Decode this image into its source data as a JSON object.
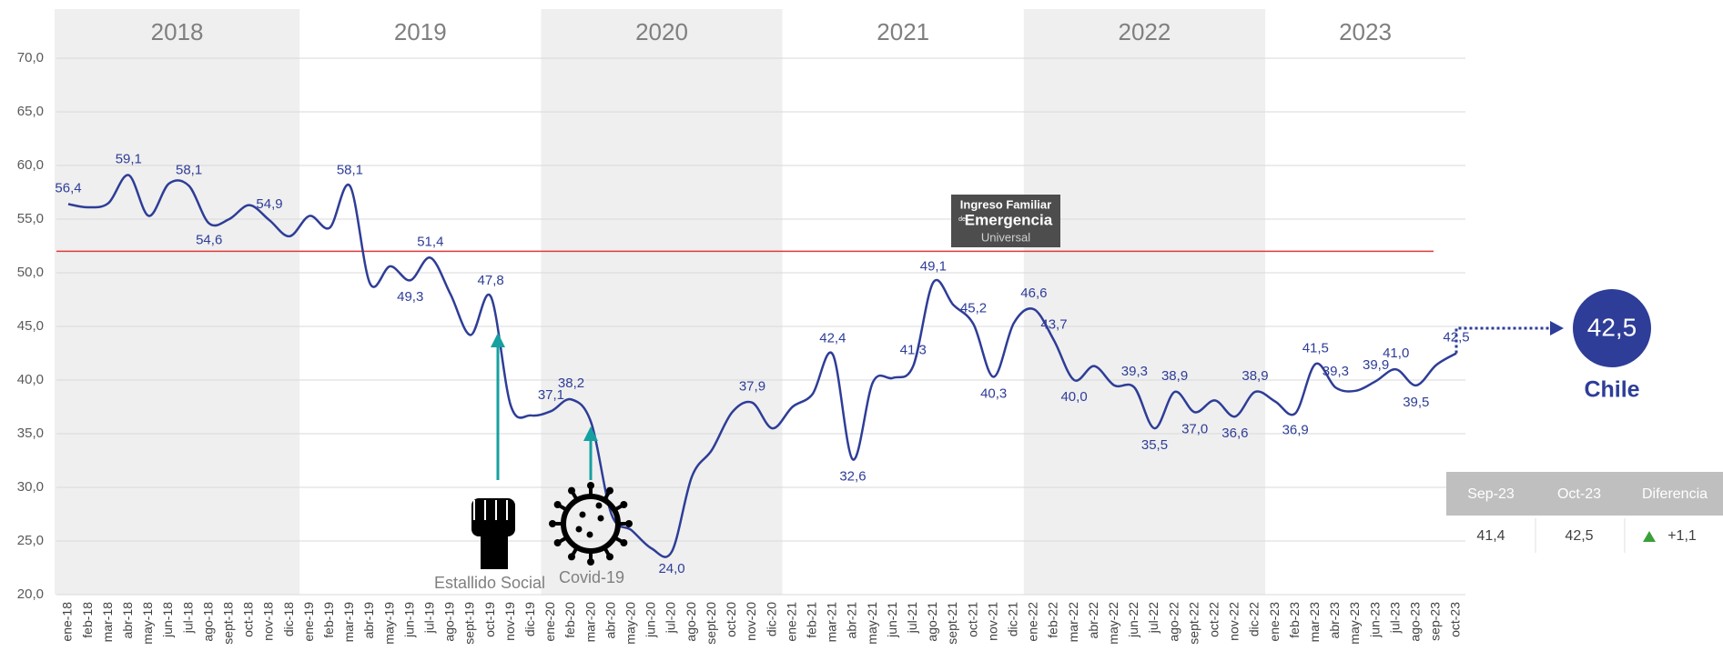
{
  "chart_data": {
    "type": "line",
    "categories": [
      "ene-18",
      "feb-18",
      "mar-18",
      "abr-18",
      "may-18",
      "jun-18",
      "jul-18",
      "ago-18",
      "sept-18",
      "oct-18",
      "nov-18",
      "dic-18",
      "ene-19",
      "feb-19",
      "mar-19",
      "abr-19",
      "may-19",
      "jun-19",
      "jul-19",
      "ago-19",
      "sept-19",
      "oct-19",
      "nov-19",
      "dic-19",
      "ene-20",
      "feb-20",
      "mar-20",
      "abr-20",
      "may-20",
      "jun-20",
      "jul-20",
      "ago-20",
      "sept-20",
      "oct-20",
      "nov-20",
      "dic-20",
      "ene-21",
      "feb-21",
      "mar-21",
      "abr-21",
      "may-21",
      "jun-21",
      "jul-21",
      "ago-21",
      "sept-21",
      "oct-21",
      "nov-21",
      "dic-21",
      "ene-22",
      "feb-22",
      "mar-22",
      "abr-22",
      "may-22",
      "jun-22",
      "jul-22",
      "ago-22",
      "sept-22",
      "oct-22",
      "nov-22",
      "dic-22",
      "ene-23",
      "feb-23",
      "mar-23",
      "abr-23",
      "may-23",
      "jun-23",
      "jul-23",
      "ago-23",
      "sep-23",
      "oct-23"
    ],
    "series": [
      {
        "name": "Chile",
        "color": "#2e3d97",
        "values": [
          56.4,
          56.1,
          56.5,
          59.1,
          55.3,
          58.3,
          58.1,
          54.6,
          55.0,
          56.3,
          54.9,
          53.4,
          55.3,
          54.2,
          58.1,
          49.0,
          50.6,
          49.3,
          51.4,
          48.0,
          44.2,
          47.8,
          37.6,
          36.7,
          37.1,
          38.2,
          36.0,
          27.5,
          26.0,
          24.3,
          24.0,
          31.0,
          33.5,
          37.0,
          37.9,
          35.5,
          37.5,
          38.7,
          42.4,
          32.6,
          39.8,
          40.2,
          41.3,
          49.1,
          47.0,
          45.2,
          40.3,
          45.3,
          46.6,
          43.7,
          40.0,
          41.3,
          39.5,
          39.3,
          35.5,
          38.9,
          37.0,
          38.1,
          36.6,
          38.9,
          38.0,
          36.9,
          41.5,
          39.3,
          39.0,
          39.9,
          41.0,
          39.5,
          41.4,
          42.5
        ],
        "value_labels": [
          "56,4",
          null,
          null,
          "59,1",
          null,
          null,
          "58,1",
          "54,6",
          null,
          null,
          "54,9",
          null,
          null,
          null,
          "58,1",
          null,
          null,
          "49,3",
          "51,4",
          null,
          null,
          "47,8",
          null,
          null,
          "37,1",
          "38,2",
          null,
          null,
          null,
          null,
          "24,0",
          null,
          null,
          null,
          "37,9",
          null,
          null,
          null,
          "42,4",
          "32,6",
          null,
          null,
          "41,3",
          "49,1",
          null,
          "45,2",
          "40,3",
          null,
          "46,6",
          "43,7",
          "40,0",
          null,
          null,
          "39,3",
          "35,5",
          "38,9",
          "37,0",
          null,
          "36,6",
          "38,9",
          null,
          "36,9",
          "41,5",
          "39,3",
          null,
          "39,9",
          "41,0",
          "39,5",
          null,
          "42,5"
        ]
      }
    ],
    "years": [
      "2018",
      "2019",
      "2020",
      "2021",
      "2022",
      "2023"
    ],
    "ylim": [
      20,
      70
    ],
    "yticks": [
      {
        "value": 20,
        "label": "20,0"
      },
      {
        "value": 25,
        "label": "25,0"
      },
      {
        "value": 30,
        "label": "30,0"
      },
      {
        "value": 35,
        "label": "35,0"
      },
      {
        "value": 40,
        "label": "40,0"
      },
      {
        "value": 45,
        "label": "45,0"
      },
      {
        "value": 50,
        "label": "50,0"
      },
      {
        "value": 55,
        "label": "55,0"
      },
      {
        "value": 60,
        "label": "60,0"
      },
      {
        "value": 65,
        "label": "65,0"
      },
      {
        "value": 70,
        "label": "70,0"
      }
    ],
    "grid": true,
    "reference_line": {
      "value": 52,
      "color": "#e03a3a"
    },
    "annotations": [
      "Estallido Social",
      "Covid-19"
    ],
    "logo": [
      "Ingreso Familiar",
      "de",
      "Emergencia",
      "Universal"
    ],
    "callout": {
      "value_label": "42,5",
      "name": "Chile"
    },
    "table": {
      "header": [
        "Sep-23",
        "Oct-23",
        "Diferencia"
      ],
      "rows": [
        [
          "41,4",
          "42,5",
          "+1,1"
        ]
      ]
    }
  }
}
